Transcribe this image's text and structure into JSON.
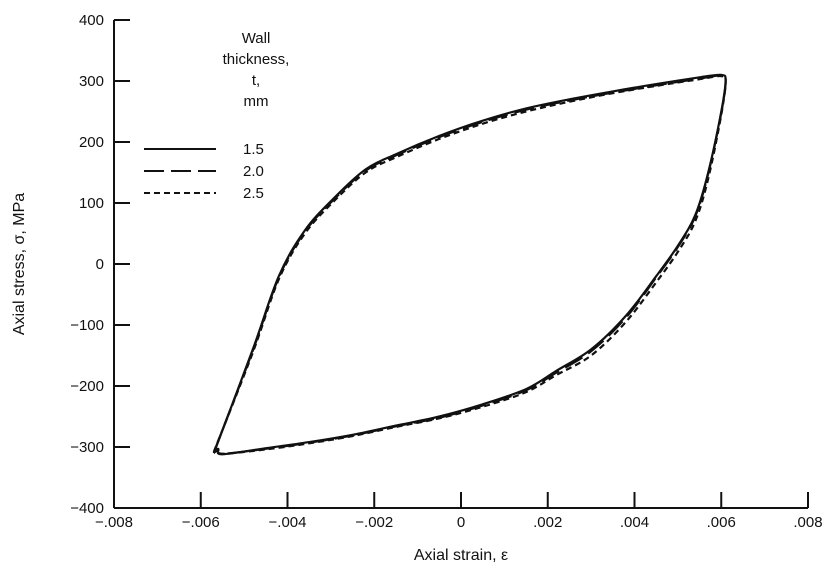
{
  "chart_data": {
    "type": "line",
    "xlabel": "Axial strain, ε",
    "ylabel": "Axial stress, σ, MPa",
    "xlim": [
      -0.008,
      0.008
    ],
    "ylim": [
      -400,
      400
    ],
    "x_ticks": [
      -0.008,
      -0.006,
      -0.004,
      -0.002,
      0,
      0.002,
      0.004,
      0.006,
      0.008
    ],
    "x_tick_labels": [
      "-.008",
      "-.006",
      "-.004",
      "-.002",
      "0",
      ".002",
      ".004",
      ".006",
      ".008"
    ],
    "y_ticks": [
      -400,
      -300,
      -200,
      -100,
      0,
      100,
      200,
      300,
      400
    ],
    "y_tick_labels": [
      "-400",
      "-300",
      "-200",
      "-100",
      "0",
      "100",
      "200",
      "300",
      "400"
    ],
    "legend": {
      "title_lines": [
        "Wall",
        "thickness,",
        "t,",
        "mm"
      ],
      "placement": "upper-left"
    },
    "series": [
      {
        "name": "1.5",
        "style": "solid",
        "x": [
          -0.0057,
          -0.0048,
          -0.0042,
          -0.0036,
          -0.0029,
          -0.0022,
          -0.0015,
          -0.0005,
          0.0005,
          0.0015,
          0.0025,
          0.0035,
          0.0045,
          0.0055,
          0.006,
          0.0061,
          0.006,
          0.0057,
          0.0054,
          0.005,
          0.0045,
          0.0038,
          0.003,
          0.0022,
          0.0015,
          0.0005,
          -0.0005,
          -0.0015,
          -0.0025,
          -0.0035,
          -0.0045,
          -0.0055,
          -0.0056,
          -0.0057
        ],
        "y": [
          -310,
          -140,
          -20,
          55,
          110,
          155,
          180,
          210,
          235,
          255,
          270,
          283,
          295,
          306,
          310,
          300,
          250,
          150,
          80,
          30,
          -20,
          -85,
          -140,
          -175,
          -205,
          -230,
          -250,
          -265,
          -280,
          -292,
          -302,
          -312,
          -305,
          -310
        ]
      },
      {
        "name": "2.0",
        "style": "long-dash",
        "x": [
          -0.0057,
          -0.0048,
          -0.0042,
          -0.0036,
          -0.0029,
          -0.0022,
          -0.0015,
          -0.0005,
          0.0005,
          0.0015,
          0.0025,
          0.0035,
          0.0045,
          0.0055,
          0.006,
          0.0061,
          0.006,
          0.0057,
          0.0054,
          0.005,
          0.0045,
          0.0038,
          0.003,
          0.0022,
          0.0015,
          0.0005,
          -0.0005,
          -0.0015,
          -0.0025,
          -0.0035,
          -0.0045,
          -0.0055,
          -0.0056,
          -0.0057
        ],
        "y": [
          -309,
          -142,
          -22,
          53,
          108,
          153,
          178,
          208,
          233,
          253,
          268,
          281,
          293,
          304,
          309,
          299,
          248,
          148,
          78,
          28,
          -22,
          -88,
          -143,
          -178,
          -207,
          -232,
          -252,
          -266,
          -281,
          -293,
          -303,
          -311,
          -304,
          -309
        ]
      },
      {
        "name": "2.5",
        "style": "short-dash",
        "x": [
          -0.0057,
          -0.0048,
          -0.0042,
          -0.0036,
          -0.0029,
          -0.0022,
          -0.0015,
          -0.0005,
          0.0005,
          0.0015,
          0.0025,
          0.0035,
          0.0045,
          0.0055,
          0.006,
          0.0061,
          0.006,
          0.0057,
          0.0054,
          0.005,
          0.0045,
          0.0038,
          0.003,
          0.0022,
          0.0015,
          0.0005,
          -0.0005,
          -0.0015,
          -0.0025,
          -0.0035,
          -0.0045,
          -0.0055,
          -0.0056,
          -0.0057
        ],
        "y": [
          -308,
          -145,
          -25,
          50,
          105,
          150,
          175,
          205,
          230,
          250,
          266,
          280,
          292,
          303,
          308,
          298,
          245,
          140,
          70,
          20,
          -30,
          -95,
          -150,
          -182,
          -210,
          -234,
          -253,
          -267,
          -282,
          -294,
          -304,
          -311,
          -303,
          -308
        ]
      }
    ]
  }
}
